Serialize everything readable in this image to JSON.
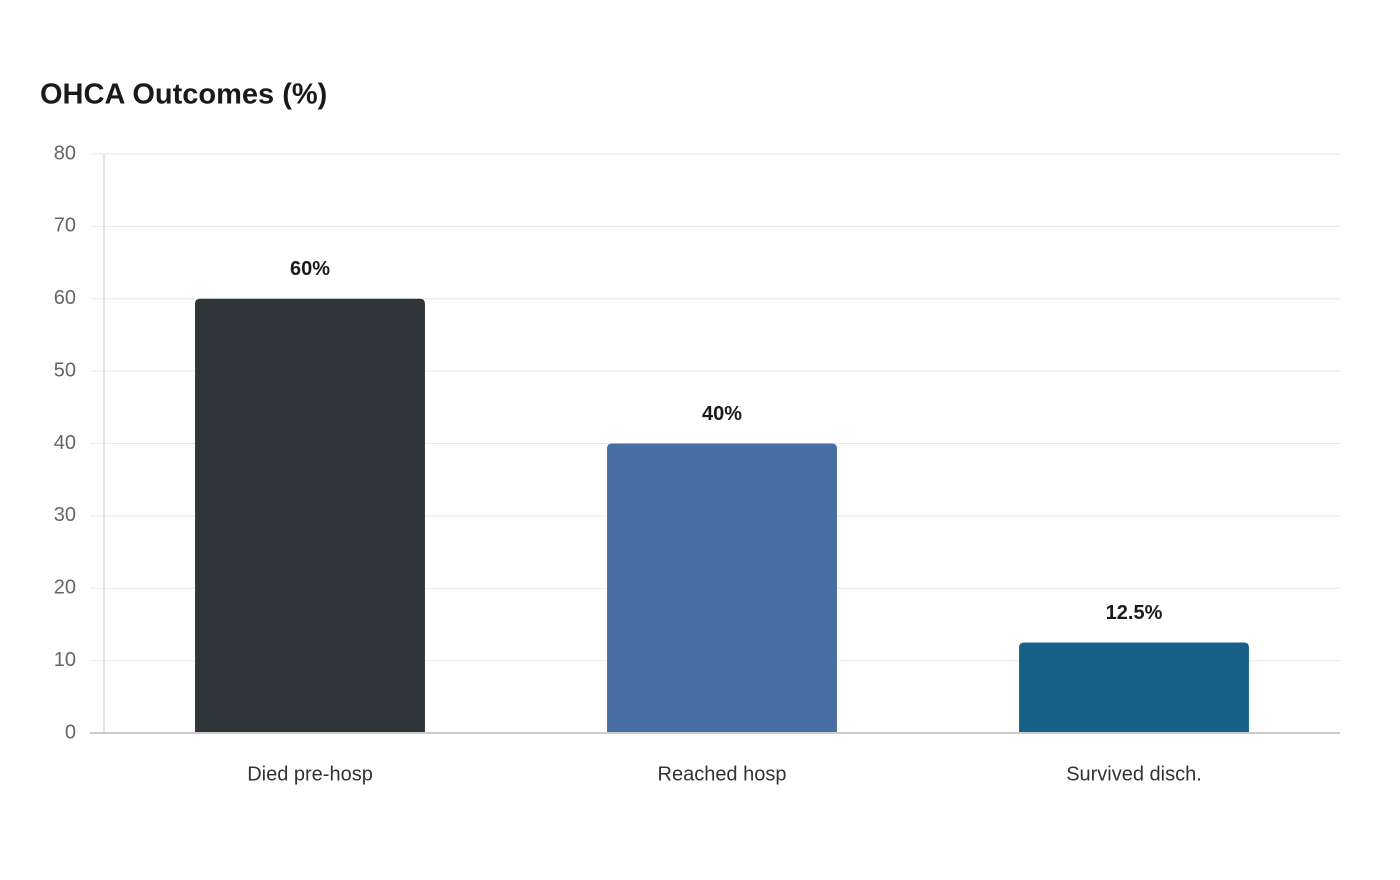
{
  "chart_data": {
    "type": "bar",
    "title": "OHCA Outcomes (%)",
    "categories": [
      "Died pre-hosp",
      "Reached hosp",
      "Survived disch."
    ],
    "values": [
      60,
      40,
      12.5
    ],
    "value_labels": [
      "60%",
      "40%",
      "12.5%"
    ],
    "colors": [
      "#2e3538",
      "#4a6fa5",
      "#176087"
    ],
    "ylim": [
      0,
      80
    ],
    "yticks": [
      0,
      10,
      20,
      30,
      40,
      50,
      60,
      70,
      80
    ],
    "grid": true
  }
}
